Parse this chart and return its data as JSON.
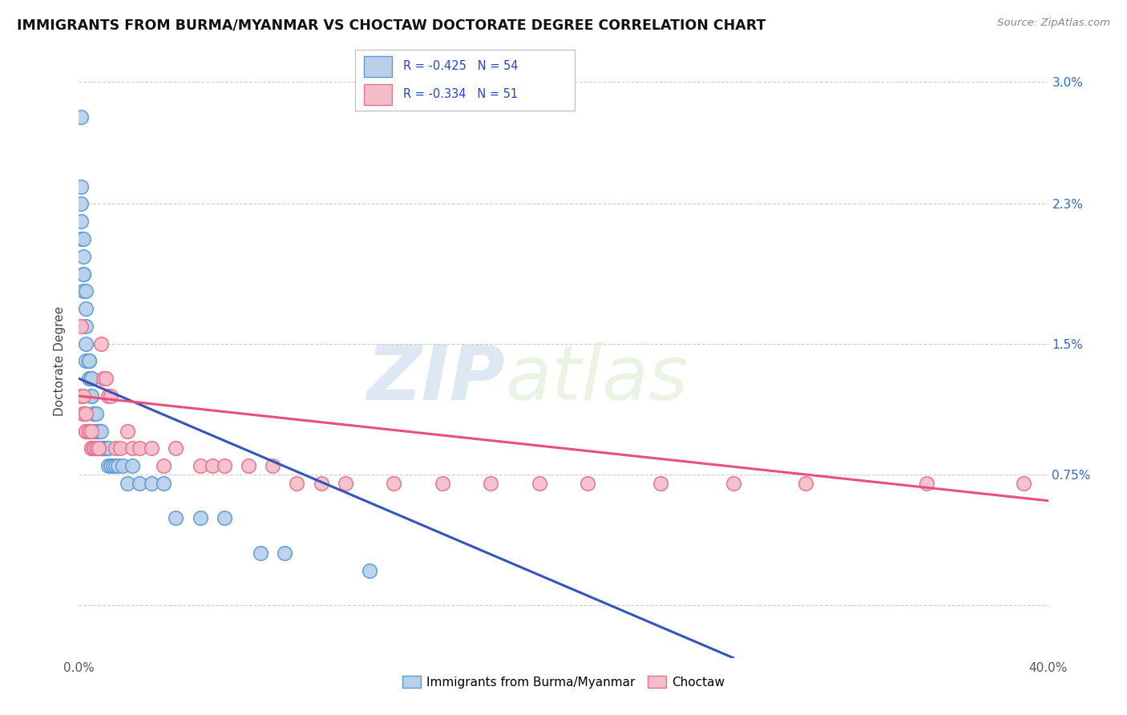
{
  "title": "IMMIGRANTS FROM BURMA/MYANMAR VS CHOCTAW DOCTORATE DEGREE CORRELATION CHART",
  "source": "Source: ZipAtlas.com",
  "ylabel": "Doctorate Degree",
  "xmin": 0.0,
  "xmax": 0.4,
  "ymin": -0.003,
  "ymax": 0.031,
  "ytick_values": [
    0.0,
    0.0075,
    0.015,
    0.023,
    0.03
  ],
  "ytick_labels": [
    "",
    "0.75%",
    "1.5%",
    "2.3%",
    "3.0%"
  ],
  "legend_r1": "R = -0.425",
  "legend_n1": "N = 54",
  "legend_r2": "R = -0.334",
  "legend_n2": "N = 51",
  "blue_face": "#b8d0ea",
  "blue_edge": "#5b9bd5",
  "pink_face": "#f4bdc8",
  "pink_edge": "#e87090",
  "line_blue": "#3355bb",
  "line_pink": "#e8507a",
  "watermark_zip": "ZIP",
  "watermark_atlas": "atlas",
  "blue_line_x0": 0.0,
  "blue_line_y0": 0.013,
  "blue_line_x1": 0.27,
  "blue_line_y1": -0.003,
  "pink_line_x0": 0.0,
  "pink_line_y0": 0.012,
  "pink_line_x1": 0.4,
  "pink_line_y1": 0.006,
  "scatter_blue_x": [
    0.001,
    0.001,
    0.001,
    0.001,
    0.001,
    0.002,
    0.002,
    0.002,
    0.002,
    0.002,
    0.003,
    0.003,
    0.003,
    0.003,
    0.003,
    0.004,
    0.004,
    0.004,
    0.005,
    0.005,
    0.005,
    0.005,
    0.006,
    0.006,
    0.006,
    0.007,
    0.007,
    0.007,
    0.008,
    0.008,
    0.008,
    0.009,
    0.009,
    0.01,
    0.01,
    0.011,
    0.012,
    0.012,
    0.013,
    0.014,
    0.015,
    0.016,
    0.018,
    0.02,
    0.022,
    0.025,
    0.03,
    0.035,
    0.04,
    0.05,
    0.06,
    0.075,
    0.085,
    0.12
  ],
  "scatter_blue_y": [
    0.028,
    0.024,
    0.023,
    0.022,
    0.021,
    0.021,
    0.02,
    0.019,
    0.019,
    0.018,
    0.018,
    0.017,
    0.016,
    0.015,
    0.014,
    0.014,
    0.014,
    0.013,
    0.013,
    0.013,
    0.012,
    0.012,
    0.011,
    0.011,
    0.01,
    0.011,
    0.01,
    0.01,
    0.01,
    0.01,
    0.009,
    0.01,
    0.009,
    0.009,
    0.009,
    0.009,
    0.009,
    0.008,
    0.008,
    0.008,
    0.008,
    0.008,
    0.008,
    0.007,
    0.008,
    0.007,
    0.007,
    0.007,
    0.005,
    0.005,
    0.005,
    0.003,
    0.003,
    0.002
  ],
  "scatter_pink_x": [
    0.001,
    0.001,
    0.002,
    0.002,
    0.002,
    0.003,
    0.003,
    0.003,
    0.004,
    0.004,
    0.004,
    0.005,
    0.005,
    0.005,
    0.006,
    0.006,
    0.007,
    0.007,
    0.008,
    0.008,
    0.009,
    0.01,
    0.011,
    0.012,
    0.013,
    0.015,
    0.017,
    0.02,
    0.022,
    0.025,
    0.03,
    0.035,
    0.04,
    0.05,
    0.055,
    0.06,
    0.07,
    0.08,
    0.09,
    0.1,
    0.11,
    0.13,
    0.15,
    0.17,
    0.19,
    0.21,
    0.24,
    0.27,
    0.3,
    0.35,
    0.39
  ],
  "scatter_pink_y": [
    0.016,
    0.012,
    0.012,
    0.011,
    0.011,
    0.011,
    0.01,
    0.01,
    0.01,
    0.01,
    0.01,
    0.01,
    0.009,
    0.009,
    0.009,
    0.009,
    0.009,
    0.009,
    0.009,
    0.009,
    0.015,
    0.013,
    0.013,
    0.012,
    0.012,
    0.009,
    0.009,
    0.01,
    0.009,
    0.009,
    0.009,
    0.008,
    0.009,
    0.008,
    0.008,
    0.008,
    0.008,
    0.008,
    0.007,
    0.007,
    0.007,
    0.007,
    0.007,
    0.007,
    0.007,
    0.007,
    0.007,
    0.007,
    0.007,
    0.007,
    0.007
  ]
}
